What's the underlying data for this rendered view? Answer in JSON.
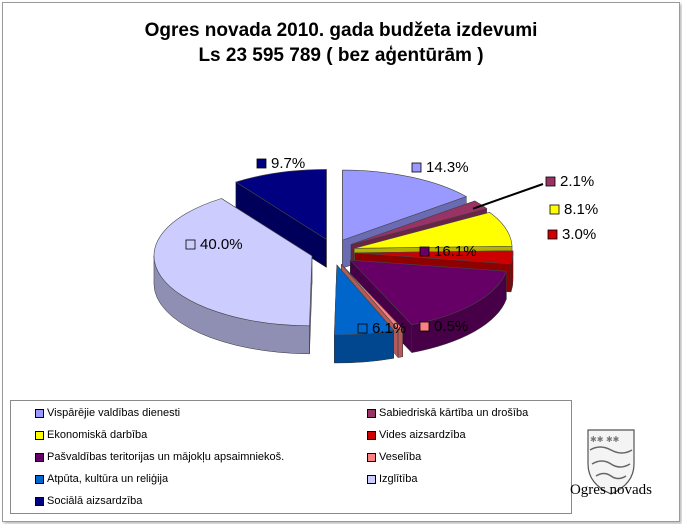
{
  "title": "Ogres novada 2010. gada budžeta izdevumi",
  "subtitle": "Ls 23 595 789 ( bez aģentūrām )",
  "logo_text": "Ogres novads",
  "chart_data": {
    "type": "pie",
    "title": "Ogres novada 2010. gada budžeta izdevumi",
    "subtitle": "Ls 23 595 789 ( bez aģentūrām )",
    "legend_position": "bottom",
    "slices": [
      {
        "label": "Vispārējie valdības dienesti",
        "value": 14.3,
        "display": "14.3%",
        "color": "#9999ff",
        "dark": "#6b6bb3"
      },
      {
        "label": "Sabiedriskā kārtība un drošība",
        "value": 2.1,
        "display": "2.1%",
        "color": "#993366",
        "dark": "#6b2447"
      },
      {
        "label": "Ekonomiskā darbība",
        "value": 8.1,
        "display": "8.1%",
        "color": "#ffff00",
        "dark": "#b3b300"
      },
      {
        "label": "Vides aizsardzība",
        "value": 3.0,
        "display": "3.0%",
        "color": "#cc0000",
        "dark": "#8f0000"
      },
      {
        "label": "Pašvaldības teritorijas un mājokļu apsaimniekoš.",
        "value": 16.1,
        "display": "16.1%",
        "color": "#660066",
        "dark": "#470047"
      },
      {
        "label": "Veselība",
        "value": 0.5,
        "display": "0.5%",
        "color": "#ff8080",
        "dark": "#b35a5a"
      },
      {
        "label": "Atpūta, kultūra un reliģija",
        "value": 6.1,
        "display": "6.1%",
        "color": "#0066cc",
        "dark": "#00478f"
      },
      {
        "label": "Izglītība",
        "value": 40.0,
        "display": "40.0%",
        "color": "#ccccff",
        "dark": "#8f8fb3"
      },
      {
        "label": "Sociālā aizsardzība",
        "value": 9.7,
        "display": "9.7%",
        "color": "#000080",
        "dark": "#00005a"
      }
    ]
  }
}
